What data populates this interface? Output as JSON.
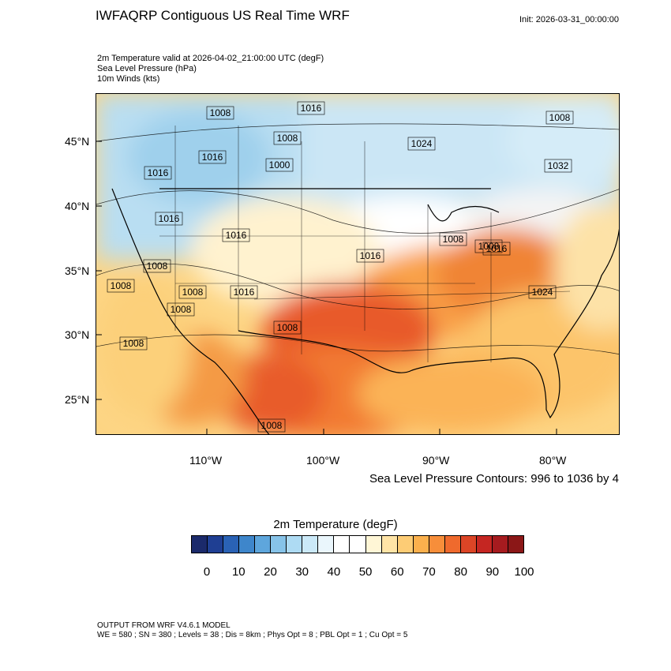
{
  "header": {
    "title": "IWFAQRP Contiguous US Real Time WRF",
    "init": "Init: 2026-03-31_00:00:00",
    "line1": "2m Temperature valid at 2026-04-02_21:00:00 UTC   (degF)",
    "line2": "Sea Level Pressure   (hPa)",
    "line3": "10m Winds   (kts)"
  },
  "map": {
    "lat_labels": [
      "45°N",
      "40°N",
      "35°N",
      "30°N",
      "25°N"
    ],
    "lon_labels": [
      "110°W",
      "100°W",
      "90°W",
      "80°W"
    ],
    "pressure_labels": [
      "1008",
      "1016",
      "1008",
      "1016",
      "1008",
      "1000",
      "1016",
      "1024",
      "1032",
      "1016",
      "1016",
      "1008",
      "1008",
      "1008",
      "1008",
      "1016",
      "1008",
      "1008",
      "1016",
      "1008",
      "1008",
      "1024",
      "1008",
      "1016"
    ]
  },
  "contour_note": "Sea Level Pressure Contours: 996 to 1036 by 4",
  "colorbar": {
    "title": "2m Temperature  (degF)",
    "colors": [
      "#1b2a6b",
      "#1f3f93",
      "#2a62b5",
      "#3e86cb",
      "#5ea6dc",
      "#87c3e8",
      "#aedbf3",
      "#cbe9f8",
      "#eaf6fc",
      "#ffffff",
      "#ffffff",
      "#fff6d6",
      "#ffe4a6",
      "#fdcc75",
      "#fbb04d",
      "#f78e3a",
      "#ef6a2d",
      "#dc4526",
      "#c52622",
      "#a61b1f",
      "#8b1717"
    ],
    "labels": [
      "0",
      "10",
      "20",
      "30",
      "40",
      "50",
      "60",
      "70",
      "80",
      "90",
      "100"
    ]
  },
  "footer": {
    "line1": "OUTPUT FROM WRF V4.6.1 MODEL",
    "line2": "WE = 580 ; SN = 380 ; Levels = 38 ; Dis = 8km ; Phys Opt = 8 ; PBL Opt = 1 ; Cu Opt = 5"
  }
}
